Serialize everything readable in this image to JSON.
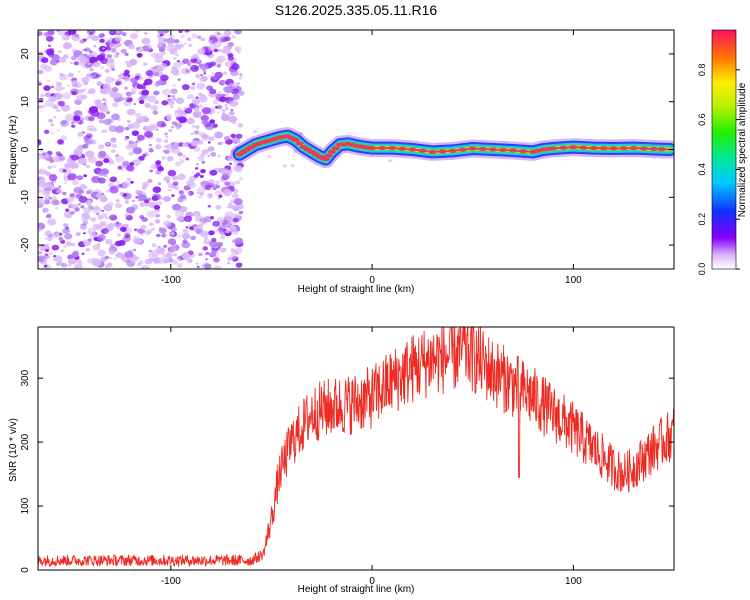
{
  "title": "S126.2025.335.05.11.R16",
  "colors": {
    "snr_line": "#ee2a22",
    "axis": "#000000",
    "spectrum_ridge_core": "#e83a5a",
    "spectrum_ridge_mid": "#f0e020",
    "spectrum_ridge_outer": "#18c8e8",
    "noise_dark": "#8a1ef0",
    "noise_light": "#d9b8f7"
  },
  "colorbar": {
    "label": "Normalized spectral amplitude",
    "range": [
      0,
      0.96
    ],
    "ticks": [
      "0.0",
      "0.2",
      "0.4",
      "0.6",
      "0.8"
    ],
    "tick_values": [
      0,
      0.2,
      0.4,
      0.6,
      0.8
    ]
  },
  "chart_data": [
    {
      "type": "heatmap",
      "title": "S126.2025.335.05.11.R16",
      "xlabel": "Height of straight line (km)",
      "ylabel": "Frequency (Hz)",
      "xlim": [
        -166,
        150
      ],
      "ylim": [
        -25,
        25
      ],
      "xticks": [
        -100,
        0,
        100
      ],
      "xtick_labels": [
        "-100",
        "0",
        "100"
      ],
      "yticks": [
        20,
        10,
        0,
        -10,
        -20
      ],
      "ytick_labels": [
        "20",
        "10",
        "0",
        "-10",
        "-20"
      ],
      "noise_region_x": [
        -166,
        -64
      ],
      "ridge": {
        "x": [
          -66,
          -62,
          -58,
          -54,
          -50,
          -46,
          -42,
          -38,
          -34,
          -30,
          -26,
          -23,
          -20,
          -16,
          -12,
          -8,
          -4,
          0,
          10,
          20,
          30,
          40,
          50,
          60,
          70,
          80,
          85,
          90,
          100,
          110,
          120,
          130,
          140,
          148
        ],
        "freq": [
          -1.0,
          0.0,
          1.0,
          1.5,
          2.0,
          2.5,
          2.8,
          2.0,
          0.5,
          -0.5,
          -1.5,
          -2.0,
          -0.5,
          1.0,
          1.2,
          0.8,
          0.5,
          0.3,
          0.3,
          0.0,
          -0.5,
          -0.3,
          0.2,
          0.0,
          -0.2,
          -0.5,
          0.0,
          0.2,
          0.5,
          0.3,
          0.2,
          0.3,
          0.1,
          0.0
        ]
      }
    },
    {
      "type": "line",
      "xlabel": "Height of straight line (km)",
      "ylabel": "SNR (10 * v/v)",
      "xlim": [
        -166,
        150
      ],
      "ylim": [
        0,
        380
      ],
      "xticks": [
        -100,
        0,
        100
      ],
      "xtick_labels": [
        "-100",
        "0",
        "100"
      ],
      "yticks": [
        0,
        100,
        200,
        300
      ],
      "ytick_labels": [
        "0",
        "100",
        "200",
        "300"
      ],
      "series": [
        {
          "name": "SNR",
          "x": [
            -166,
            -60,
            -54,
            -50,
            -46,
            -40,
            -30,
            -20,
            -10,
            0,
            10,
            20,
            30,
            40,
            46,
            50,
            60,
            70,
            80,
            90,
            100,
            110,
            120,
            125,
            130,
            140,
            150
          ],
          "y": [
            15,
            15,
            25,
            80,
            150,
            200,
            245,
            255,
            260,
            270,
            295,
            315,
            330,
            335,
            345,
            335,
            310,
            290,
            270,
            245,
            220,
            190,
            160,
            150,
            160,
            190,
            215
          ],
          "notch": {
            "x": 73,
            "y": 145
          }
        }
      ]
    }
  ]
}
